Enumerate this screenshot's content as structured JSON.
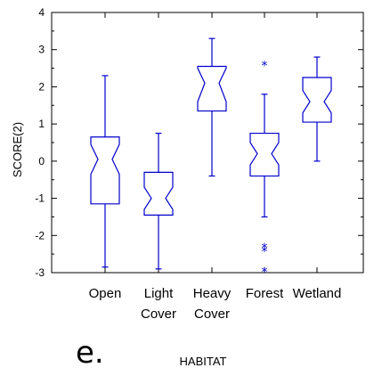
{
  "panel_label": "e.",
  "chart_data": {
    "type": "box",
    "title": "",
    "xlabel": "HABITAT",
    "ylabel": "SCORE(2)",
    "ylim": [
      -3,
      4
    ],
    "yticks": [
      "-3",
      "-2",
      "-1",
      "0",
      "1",
      "2",
      "3",
      "4"
    ],
    "grid": false,
    "color": "#0000cc",
    "categories": [
      [
        "Open"
      ],
      [
        "Light",
        "Cover"
      ],
      [
        "Heavy",
        "Cover"
      ],
      [
        "Forest"
      ],
      [
        "Wetland"
      ]
    ],
    "boxes": [
      {
        "category": "Open",
        "whisker_low": -2.85,
        "q1": -1.15,
        "notch_low": -0.35,
        "median": 0.05,
        "notch_high": 0.45,
        "q3": 0.65,
        "whisker_high": 2.3,
        "outliers": []
      },
      {
        "category": "Light Cover",
        "whisker_low": -2.9,
        "q1": -1.45,
        "notch_low": -1.3,
        "median": -1.0,
        "notch_high": -0.7,
        "q3": -0.3,
        "whisker_high": 0.75,
        "outliers": []
      },
      {
        "category": "Heavy Cover",
        "whisker_low": -0.4,
        "q1": 1.35,
        "notch_low": 1.6,
        "median": 2.1,
        "notch_high": 2.5,
        "q3": 2.55,
        "whisker_high": 3.3,
        "outliers": []
      },
      {
        "category": "Forest",
        "whisker_low": -1.5,
        "q1": -0.4,
        "notch_low": -0.1,
        "median": 0.2,
        "notch_high": 0.5,
        "q3": 0.75,
        "whisker_high": 1.8,
        "outliers": [
          2.6,
          -2.3,
          -2.4,
          -2.95
        ]
      },
      {
        "category": "Wetland",
        "whisker_low": 0.0,
        "q1": 1.05,
        "notch_low": 1.3,
        "median": 1.6,
        "notch_high": 1.9,
        "q3": 2.25,
        "whisker_high": 2.8,
        "outliers": []
      }
    ]
  }
}
